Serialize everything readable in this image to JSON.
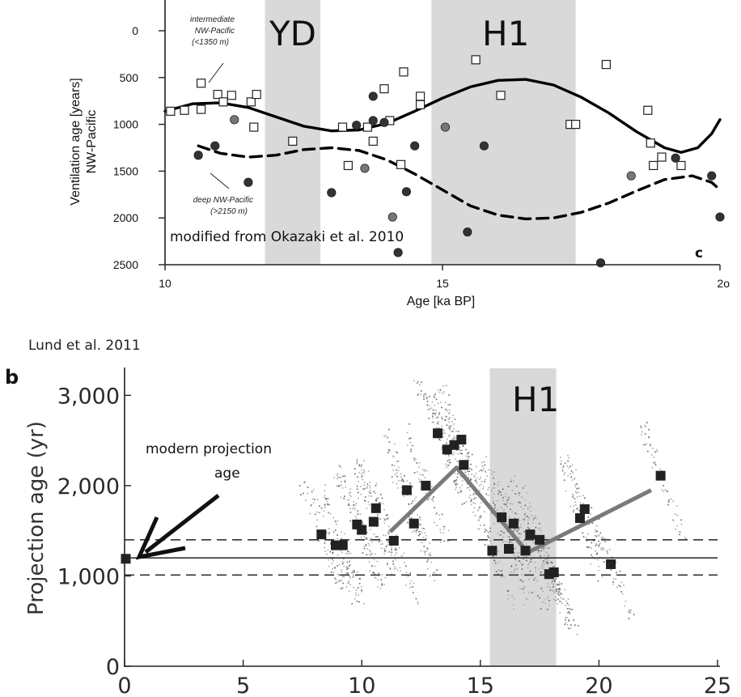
{
  "chart_data": [
    {
      "type": "scatter",
      "panel_letter": "c",
      "xlabel": "Age [ka BP]",
      "ylabel": "Ventilation age  [years]\nNW-Pacific",
      "xlim": [
        10,
        20
      ],
      "ylim": [
        2500,
        0
      ],
      "x_ticks": [
        10,
        15,
        20
      ],
      "x_tick_labels": [
        "10",
        "15",
        "2o"
      ],
      "y_ticks": [
        0,
        500,
        1000,
        1500,
        2000,
        2500
      ],
      "y_tick_labels": [
        "0",
        "500",
        "1000",
        "1500",
        "2000",
        "2500"
      ],
      "shaded_intervals": [
        {
          "label": "YD",
          "x": [
            11.8,
            12.8
          ]
        },
        {
          "label": "H1",
          "x": [
            14.8,
            17.4
          ]
        }
      ],
      "series": [
        {
          "name": "intermediate NW-Pacific (<1350 m)",
          "label_lines": [
            "intermediate",
            "NW-Pacific",
            "(<1350 m)"
          ],
          "marker": "open-square",
          "points": [
            [
              10.1,
              860
            ],
            [
              10.35,
              850
            ],
            [
              10.65,
              560
            ],
            [
              10.65,
              840
            ],
            [
              10.95,
              680
            ],
            [
              11.05,
              760
            ],
            [
              11.2,
              690
            ],
            [
              11.55,
              760
            ],
            [
              11.65,
              680
            ],
            [
              11.6,
              1030
            ],
            [
              12.3,
              1180
            ],
            [
              13.2,
              1030
            ],
            [
              13.3,
              1440
            ],
            [
              13.65,
              1030
            ],
            [
              13.75,
              1180
            ],
            [
              13.95,
              620
            ],
            [
              14.05,
              960
            ],
            [
              14.3,
              440
            ],
            [
              14.25,
              1430
            ],
            [
              14.6,
              700
            ],
            [
              14.6,
              790
            ],
            [
              15.6,
              310
            ],
            [
              16.05,
              690
            ],
            [
              17.3,
              1000
            ],
            [
              17.4,
              1000
            ],
            [
              17.95,
              360
            ],
            [
              18.7,
              850
            ],
            [
              18.75,
              1200
            ],
            [
              18.8,
              1440
            ],
            [
              18.95,
              1350
            ],
            [
              19.3,
              1440
            ]
          ]
        },
        {
          "name": "deep NW-Pacific (>2150 m)",
          "label_lines": [
            "deep NW-Pacific",
            "(>2150 m)"
          ],
          "marker": "filled-circle",
          "points": [
            [
              10.6,
              1330
            ],
            [
              10.9,
              1230
            ],
            [
              11.25,
              950
            ],
            [
              11.5,
              1620
            ],
            [
              13.0,
              1730
            ],
            [
              13.45,
              1010
            ],
            [
              13.6,
              1470
            ],
            [
              13.75,
              960
            ],
            [
              13.75,
              700
            ],
            [
              13.95,
              980
            ],
            [
              14.1,
              1990
            ],
            [
              14.2,
              2370
            ],
            [
              14.35,
              1720
            ],
            [
              14.5,
              1230
            ],
            [
              15.05,
              1030
            ],
            [
              15.45,
              2150
            ],
            [
              15.75,
              1230
            ],
            [
              17.85,
              2480
            ],
            [
              18.4,
              1550
            ],
            [
              19.2,
              1360
            ],
            [
              19.85,
              1550
            ],
            [
              20.0,
              1990
            ]
          ]
        },
        {
          "name": "intermediate trend",
          "line_style": "solid",
          "points": [
            [
              10.0,
              860
            ],
            [
              10.5,
              780
            ],
            [
              11.0,
              770
            ],
            [
              11.5,
              820
            ],
            [
              12.0,
              920
            ],
            [
              12.5,
              1020
            ],
            [
              13.0,
              1070
            ],
            [
              13.5,
              1060
            ],
            [
              14.0,
              990
            ],
            [
              14.5,
              860
            ],
            [
              15.0,
              720
            ],
            [
              15.5,
              600
            ],
            [
              16.0,
              530
            ],
            [
              16.5,
              520
            ],
            [
              17.0,
              580
            ],
            [
              17.5,
              710
            ],
            [
              18.0,
              880
            ],
            [
              18.5,
              1080
            ],
            [
              19.0,
              1250
            ],
            [
              19.3,
              1300
            ],
            [
              19.6,
              1250
            ],
            [
              19.85,
              1100
            ],
            [
              20.0,
              950
            ]
          ]
        },
        {
          "name": "deep trend",
          "line_style": "dashed",
          "points": [
            [
              10.6,
              1230
            ],
            [
              11.0,
              1310
            ],
            [
              11.5,
              1350
            ],
            [
              12.0,
              1330
            ],
            [
              12.5,
              1270
            ],
            [
              13.0,
              1250
            ],
            [
              13.5,
              1280
            ],
            [
              14.0,
              1380
            ],
            [
              14.5,
              1530
            ],
            [
              15.0,
              1700
            ],
            [
              15.5,
              1870
            ],
            [
              16.0,
              1970
            ],
            [
              16.5,
              2010
            ],
            [
              17.0,
              2000
            ],
            [
              17.5,
              1940
            ],
            [
              18.0,
              1840
            ],
            [
              18.5,
              1710
            ],
            [
              19.0,
              1590
            ],
            [
              19.5,
              1550
            ],
            [
              19.85,
              1620
            ],
            [
              20.0,
              1700
            ]
          ]
        }
      ],
      "annotations": [
        "YD",
        "H1",
        "modified from Okazaki et al. 2010"
      ]
    },
    {
      "type": "scatter",
      "panel_letter": "b",
      "citation": "Lund et al. 2011",
      "ylabel": "Projection age (yr)",
      "xlim": [
        0,
        25
      ],
      "ylim": [
        0,
        3500
      ],
      "x_ticks": [
        0,
        5,
        10,
        15,
        20,
        25
      ],
      "x_tick_labels": [
        "0",
        "5",
        "10",
        "15",
        "20",
        "25"
      ],
      "y_ticks": [
        0,
        1000,
        2000,
        3000
      ],
      "y_tick_labels": [
        "0",
        "1,000",
        "2,000",
        "3,000"
      ],
      "shaded_intervals": [
        {
          "label": "H1",
          "x": [
            15.4,
            18.2
          ]
        }
      ],
      "reference_lines": [
        {
          "y": 1200,
          "style": "solid"
        },
        {
          "y": 1400,
          "style": "dashed"
        },
        {
          "y": 1010,
          "style": "dashed"
        }
      ],
      "modern_point": {
        "x": 0.05,
        "y": 1190
      },
      "annotation_lines": [
        "modern projection",
        "age"
      ],
      "points": [
        [
          8.3,
          1460
        ],
        [
          8.9,
          1340
        ],
        [
          9.2,
          1340
        ],
        [
          9.8,
          1570
        ],
        [
          10.0,
          1510
        ],
        [
          10.5,
          1600
        ],
        [
          10.6,
          1750
        ],
        [
          11.35,
          1390
        ],
        [
          11.9,
          1950
        ],
        [
          12.2,
          1580
        ],
        [
          12.7,
          2000
        ],
        [
          13.2,
          2580
        ],
        [
          13.6,
          2400
        ],
        [
          13.9,
          2450
        ],
        [
          14.2,
          2510
        ],
        [
          14.3,
          2230
        ],
        [
          15.5,
          1280
        ],
        [
          15.9,
          1650
        ],
        [
          16.2,
          1300
        ],
        [
          16.4,
          1580
        ],
        [
          16.9,
          1280
        ],
        [
          17.1,
          1460
        ],
        [
          17.5,
          1400
        ],
        [
          17.9,
          1020
        ],
        [
          18.1,
          1040
        ],
        [
          19.2,
          1640
        ],
        [
          19.4,
          1740
        ],
        [
          20.5,
          1130
        ],
        [
          22.6,
          2110
        ]
      ],
      "trend_line": [
        [
          11.2,
          1490
        ],
        [
          14.0,
          2200
        ],
        [
          17.0,
          1260
        ],
        [
          22.2,
          1950
        ]
      ]
    }
  ]
}
